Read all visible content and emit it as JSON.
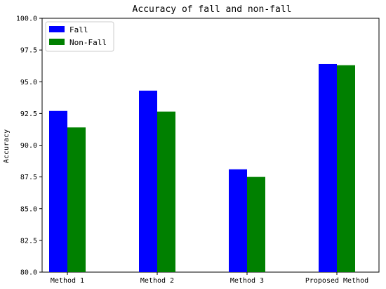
{
  "chart_data": {
    "type": "bar",
    "title": "Accuracy of fall and non-fall",
    "xlabel": "",
    "ylabel": "Accuracy",
    "categories": [
      "Method 1",
      "Method 2",
      "Method 3",
      "Proposed Method"
    ],
    "series": [
      {
        "name": "Fall",
        "color": "#0000ff",
        "values": [
          92.7,
          94.3,
          88.1,
          96.4
        ]
      },
      {
        "name": "Non-Fall",
        "color": "#008000",
        "values": [
          91.4,
          92.65,
          87.5,
          96.3
        ]
      }
    ],
    "ylim": [
      80.0,
      100.0
    ],
    "yticks": [
      "80.0",
      "82.5",
      "85.0",
      "87.5",
      "90.0",
      "92.5",
      "95.0",
      "97.5",
      "100.0"
    ],
    "legend_position": "top-left",
    "grid": false
  }
}
